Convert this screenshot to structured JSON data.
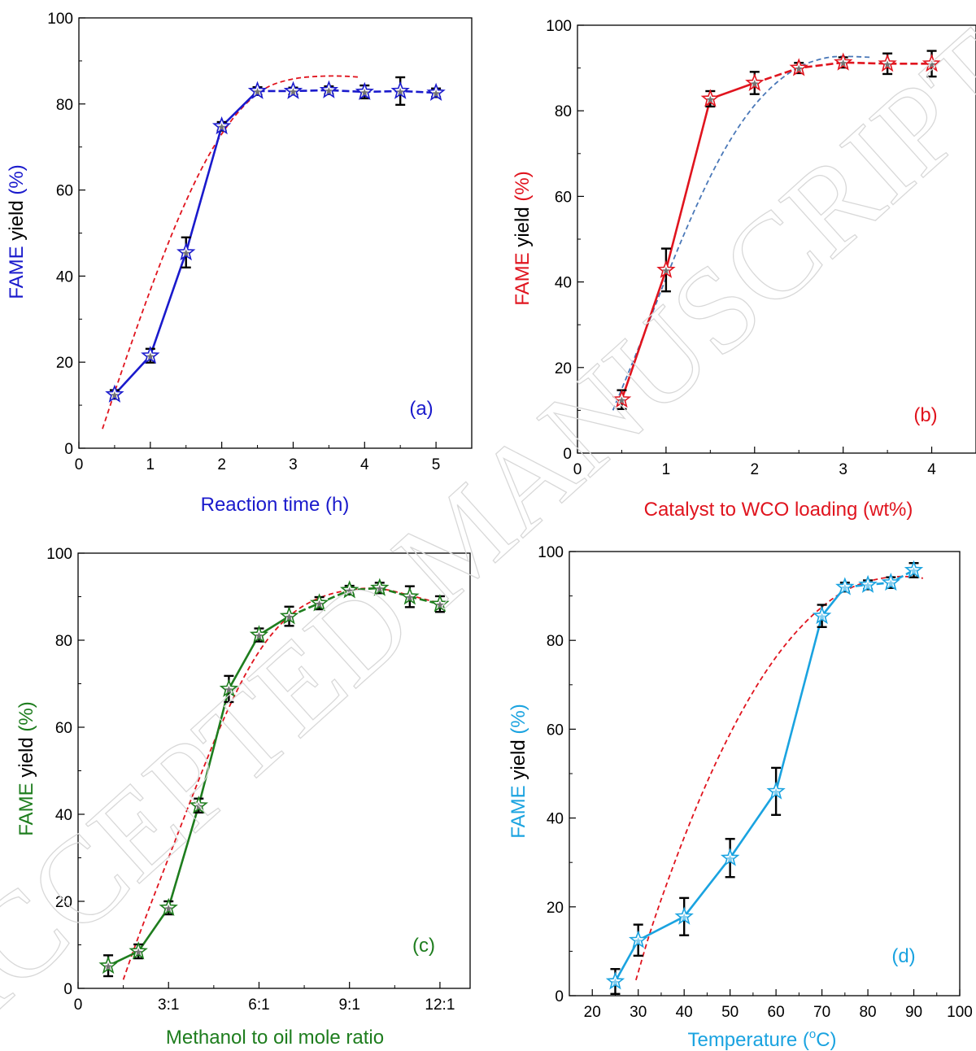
{
  "watermark": "ACCEPTED MANUSCRIPT",
  "chart_data": [
    {
      "id": "a",
      "type": "line",
      "panel_label": "(a)",
      "xlabel": "Reaction time (h)",
      "ylabel": "FAME yield (%)",
      "ylabel_split": [
        "FAME ",
        "yield ",
        "(%)"
      ],
      "xlim": [
        0,
        5.5
      ],
      "ylim": [
        0,
        100
      ],
      "xticks": [
        0,
        1,
        2,
        3,
        4,
        5
      ],
      "xtick_labels": [
        "0",
        "1",
        "2",
        "3",
        "4",
        "5"
      ],
      "yticks": [
        0,
        20,
        40,
        60,
        80,
        100
      ],
      "ytick_labels": [
        "0",
        "20",
        "40",
        "60",
        "80",
        "100"
      ],
      "color": "#1a1acc",
      "fit_color": "#e0141e",
      "series": [
        {
          "x": [
            0.5,
            1.0,
            1.5,
            2.0,
            2.5,
            3.0,
            3.5,
            4.0,
            4.5,
            5.0
          ],
          "y": [
            12.5,
            21.5,
            45.5,
            74.8,
            83.0,
            83.0,
            83.2,
            82.8,
            83.0,
            82.6
          ],
          "err": [
            1.0,
            1.6,
            3.5,
            1.0,
            0.9,
            0.8,
            0.9,
            1.5,
            3.2,
            1.0
          ],
          "style": "solid-then-dashed",
          "dash_from_index": 4
        }
      ],
      "fit": {
        "x": [
          0.33,
          0.6,
          1.0,
          1.4,
          1.8,
          2.2,
          2.6,
          3.0,
          3.4,
          3.7,
          3.95
        ],
        "y": [
          4.5,
          18,
          37,
          54,
          68,
          78,
          84,
          86,
          86.5,
          86.5,
          86.2
        ]
      }
    },
    {
      "id": "b",
      "type": "line",
      "panel_label": "(b)",
      "xlabel": "Catalyst to WCO loading (wt%)",
      "ylabel": "FAME yield (%)",
      "ylabel_split": [
        "FAME ",
        "yield ",
        "(%)"
      ],
      "xlim": [
        0,
        4.5
      ],
      "ylim": [
        0,
        100
      ],
      "xticks": [
        0,
        1,
        2,
        3,
        4
      ],
      "xtick_labels": [
        "0",
        "1",
        "2",
        "3",
        "4"
      ],
      "yticks": [
        0,
        20,
        40,
        60,
        80,
        100
      ],
      "ytick_labels": [
        "0",
        "20",
        "40",
        "60",
        "80",
        "100"
      ],
      "color": "#e0141e",
      "fit_color": "#4a78b8",
      "series": [
        {
          "x": [
            0.5,
            1.0,
            1.5,
            2.0,
            2.5,
            3.0,
            3.5,
            4.0
          ],
          "y": [
            12.5,
            42.8,
            82.8,
            86.5,
            90.0,
            91.3,
            91.0,
            91.0
          ],
          "err": [
            2.2,
            5.0,
            1.8,
            2.6,
            1.2,
            1.2,
            2.4,
            3.0
          ],
          "style": "solid-then-dashed",
          "dash_from_index": 3
        }
      ],
      "fit": {
        "x": [
          0.4,
          0.7,
          1.0,
          1.3,
          1.6,
          1.9,
          2.2,
          2.5,
          2.8,
          3.0,
          3.3
        ],
        "y": [
          10,
          25,
          41,
          56,
          69,
          79,
          86,
          90.5,
          92.5,
          92.8,
          92.5
        ]
      }
    },
    {
      "id": "c",
      "type": "line",
      "panel_label": "(c)",
      "xlabel": "Methanol to oil mole ratio",
      "ylabel": "FAME yield (%)",
      "ylabel_split": [
        "FAME ",
        "yield ",
        "(%)"
      ],
      "xlim": [
        0,
        13
      ],
      "ylim": [
        0,
        100
      ],
      "xticks": [
        0,
        3,
        6,
        9,
        12
      ],
      "xtick_labels": [
        "0",
        "3:1",
        "6:1",
        "9:1",
        "12:1"
      ],
      "yticks": [
        0,
        20,
        40,
        60,
        80,
        100
      ],
      "ytick_labels": [
        "0",
        "20",
        "40",
        "60",
        "80",
        "100"
      ],
      "color": "#1e7d1e",
      "fit_color": "#e0141e",
      "series": [
        {
          "x": [
            1,
            2,
            3,
            4,
            5,
            6,
            7,
            8,
            9,
            10,
            11,
            12
          ],
          "y": [
            5.2,
            8.5,
            18.5,
            42.0,
            68.8,
            81.2,
            85.5,
            88.5,
            91.5,
            92.0,
            90.0,
            88.3
          ],
          "err": [
            2.4,
            1.6,
            1.5,
            1.6,
            3.0,
            1.5,
            2.2,
            1.4,
            1.0,
            1.2,
            2.4,
            1.8
          ],
          "style": "solid-then-dashed",
          "dash_from_index": 6
        }
      ],
      "fit": {
        "x": [
          1.5,
          2.0,
          3.0,
          4.0,
          5.0,
          6.0,
          7.0,
          8.0,
          9.0,
          10.0,
          11.0,
          12.0
        ],
        "y": [
          2,
          12,
          30,
          48,
          65,
          78,
          86,
          90,
          91.7,
          92.1,
          90.3,
          88.5
        ]
      }
    },
    {
      "id": "d",
      "type": "line",
      "panel_label": "(d)",
      "xlabel": "Temperature (",
      "xlabel_unit": "o",
      "xlabel_end": "C)",
      "ylabel": "FAME yield (%)",
      "ylabel_split": [
        "FAME ",
        "yield ",
        "(%)"
      ],
      "xlim": [
        15,
        100
      ],
      "ylim": [
        0,
        100
      ],
      "xticks": [
        20,
        30,
        40,
        50,
        60,
        70,
        80,
        90,
        100
      ],
      "xtick_labels": [
        "20",
        "30",
        "40",
        "50",
        "60",
        "70",
        "80",
        "90",
        "100"
      ],
      "yticks": [
        0,
        20,
        40,
        60,
        80,
        100
      ],
      "ytick_labels": [
        "0",
        "20",
        "40",
        "60",
        "80",
        "100"
      ],
      "color": "#1aa3e0",
      "fit_color": "#e0141e",
      "series": [
        {
          "x": [
            25,
            30,
            40,
            50,
            60,
            70,
            75,
            80,
            85,
            90
          ],
          "y": [
            3.2,
            12.5,
            17.8,
            31.0,
            46.0,
            85.5,
            92.0,
            92.5,
            93.0,
            95.8
          ],
          "err": [
            2.8,
            3.5,
            4.2,
            4.3,
            5.3,
            2.5,
            1.0,
            1.0,
            1.2,
            1.6
          ],
          "style": "solid-then-dashed",
          "dash_from_index": 6
        }
      ],
      "fit": {
        "x": [
          29.5,
          33,
          40,
          47,
          54,
          61,
          68,
          75,
          82,
          88,
          92
        ],
        "y": [
          3.5,
          16,
          36,
          53,
          67,
          78,
          86,
          91.5,
          94,
          94.5,
          94
        ]
      }
    }
  ]
}
